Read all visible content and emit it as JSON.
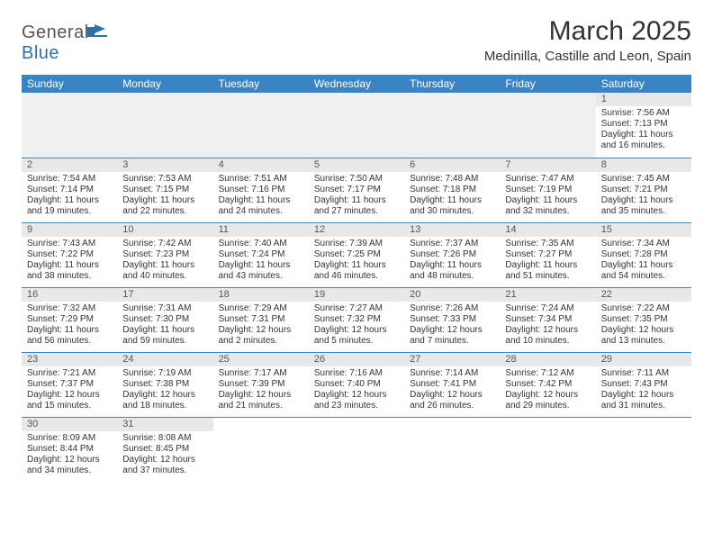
{
  "logo": {
    "part1": "General",
    "part2": "Blue"
  },
  "title": "March 2025",
  "location": "Medinilla, Castille and Leon, Spain",
  "colors": {
    "header_bg": "#3b84c4",
    "header_text": "#ffffff",
    "daynum_bg": "#e8e8e8",
    "border": "#3b84c4",
    "text": "#333333"
  },
  "week_headers": [
    "Sunday",
    "Monday",
    "Tuesday",
    "Wednesday",
    "Thursday",
    "Friday",
    "Saturday"
  ],
  "weeks": [
    [
      null,
      null,
      null,
      null,
      null,
      null,
      {
        "day": "1",
        "sunrise": "Sunrise: 7:56 AM",
        "sunset": "Sunset: 7:13 PM",
        "daylight": "Daylight: 11 hours and 16 minutes."
      }
    ],
    [
      {
        "day": "2",
        "sunrise": "Sunrise: 7:54 AM",
        "sunset": "Sunset: 7:14 PM",
        "daylight": "Daylight: 11 hours and 19 minutes."
      },
      {
        "day": "3",
        "sunrise": "Sunrise: 7:53 AM",
        "sunset": "Sunset: 7:15 PM",
        "daylight": "Daylight: 11 hours and 22 minutes."
      },
      {
        "day": "4",
        "sunrise": "Sunrise: 7:51 AM",
        "sunset": "Sunset: 7:16 PM",
        "daylight": "Daylight: 11 hours and 24 minutes."
      },
      {
        "day": "5",
        "sunrise": "Sunrise: 7:50 AM",
        "sunset": "Sunset: 7:17 PM",
        "daylight": "Daylight: 11 hours and 27 minutes."
      },
      {
        "day": "6",
        "sunrise": "Sunrise: 7:48 AM",
        "sunset": "Sunset: 7:18 PM",
        "daylight": "Daylight: 11 hours and 30 minutes."
      },
      {
        "day": "7",
        "sunrise": "Sunrise: 7:47 AM",
        "sunset": "Sunset: 7:19 PM",
        "daylight": "Daylight: 11 hours and 32 minutes."
      },
      {
        "day": "8",
        "sunrise": "Sunrise: 7:45 AM",
        "sunset": "Sunset: 7:21 PM",
        "daylight": "Daylight: 11 hours and 35 minutes."
      }
    ],
    [
      {
        "day": "9",
        "sunrise": "Sunrise: 7:43 AM",
        "sunset": "Sunset: 7:22 PM",
        "daylight": "Daylight: 11 hours and 38 minutes."
      },
      {
        "day": "10",
        "sunrise": "Sunrise: 7:42 AM",
        "sunset": "Sunset: 7:23 PM",
        "daylight": "Daylight: 11 hours and 40 minutes."
      },
      {
        "day": "11",
        "sunrise": "Sunrise: 7:40 AM",
        "sunset": "Sunset: 7:24 PM",
        "daylight": "Daylight: 11 hours and 43 minutes."
      },
      {
        "day": "12",
        "sunrise": "Sunrise: 7:39 AM",
        "sunset": "Sunset: 7:25 PM",
        "daylight": "Daylight: 11 hours and 46 minutes."
      },
      {
        "day": "13",
        "sunrise": "Sunrise: 7:37 AM",
        "sunset": "Sunset: 7:26 PM",
        "daylight": "Daylight: 11 hours and 48 minutes."
      },
      {
        "day": "14",
        "sunrise": "Sunrise: 7:35 AM",
        "sunset": "Sunset: 7:27 PM",
        "daylight": "Daylight: 11 hours and 51 minutes."
      },
      {
        "day": "15",
        "sunrise": "Sunrise: 7:34 AM",
        "sunset": "Sunset: 7:28 PM",
        "daylight": "Daylight: 11 hours and 54 minutes."
      }
    ],
    [
      {
        "day": "16",
        "sunrise": "Sunrise: 7:32 AM",
        "sunset": "Sunset: 7:29 PM",
        "daylight": "Daylight: 11 hours and 56 minutes."
      },
      {
        "day": "17",
        "sunrise": "Sunrise: 7:31 AM",
        "sunset": "Sunset: 7:30 PM",
        "daylight": "Daylight: 11 hours and 59 minutes."
      },
      {
        "day": "18",
        "sunrise": "Sunrise: 7:29 AM",
        "sunset": "Sunset: 7:31 PM",
        "daylight": "Daylight: 12 hours and 2 minutes."
      },
      {
        "day": "19",
        "sunrise": "Sunrise: 7:27 AM",
        "sunset": "Sunset: 7:32 PM",
        "daylight": "Daylight: 12 hours and 5 minutes."
      },
      {
        "day": "20",
        "sunrise": "Sunrise: 7:26 AM",
        "sunset": "Sunset: 7:33 PM",
        "daylight": "Daylight: 12 hours and 7 minutes."
      },
      {
        "day": "21",
        "sunrise": "Sunrise: 7:24 AM",
        "sunset": "Sunset: 7:34 PM",
        "daylight": "Daylight: 12 hours and 10 minutes."
      },
      {
        "day": "22",
        "sunrise": "Sunrise: 7:22 AM",
        "sunset": "Sunset: 7:35 PM",
        "daylight": "Daylight: 12 hours and 13 minutes."
      }
    ],
    [
      {
        "day": "23",
        "sunrise": "Sunrise: 7:21 AM",
        "sunset": "Sunset: 7:37 PM",
        "daylight": "Daylight: 12 hours and 15 minutes."
      },
      {
        "day": "24",
        "sunrise": "Sunrise: 7:19 AM",
        "sunset": "Sunset: 7:38 PM",
        "daylight": "Daylight: 12 hours and 18 minutes."
      },
      {
        "day": "25",
        "sunrise": "Sunrise: 7:17 AM",
        "sunset": "Sunset: 7:39 PM",
        "daylight": "Daylight: 12 hours and 21 minutes."
      },
      {
        "day": "26",
        "sunrise": "Sunrise: 7:16 AM",
        "sunset": "Sunset: 7:40 PM",
        "daylight": "Daylight: 12 hours and 23 minutes."
      },
      {
        "day": "27",
        "sunrise": "Sunrise: 7:14 AM",
        "sunset": "Sunset: 7:41 PM",
        "daylight": "Daylight: 12 hours and 26 minutes."
      },
      {
        "day": "28",
        "sunrise": "Sunrise: 7:12 AM",
        "sunset": "Sunset: 7:42 PM",
        "daylight": "Daylight: 12 hours and 29 minutes."
      },
      {
        "day": "29",
        "sunrise": "Sunrise: 7:11 AM",
        "sunset": "Sunset: 7:43 PM",
        "daylight": "Daylight: 12 hours and 31 minutes."
      }
    ],
    [
      {
        "day": "30",
        "sunrise": "Sunrise: 8:09 AM",
        "sunset": "Sunset: 8:44 PM",
        "daylight": "Daylight: 12 hours and 34 minutes."
      },
      {
        "day": "31",
        "sunrise": "Sunrise: 8:08 AM",
        "sunset": "Sunset: 8:45 PM",
        "daylight": "Daylight: 12 hours and 37 minutes."
      },
      null,
      null,
      null,
      null,
      null
    ]
  ]
}
